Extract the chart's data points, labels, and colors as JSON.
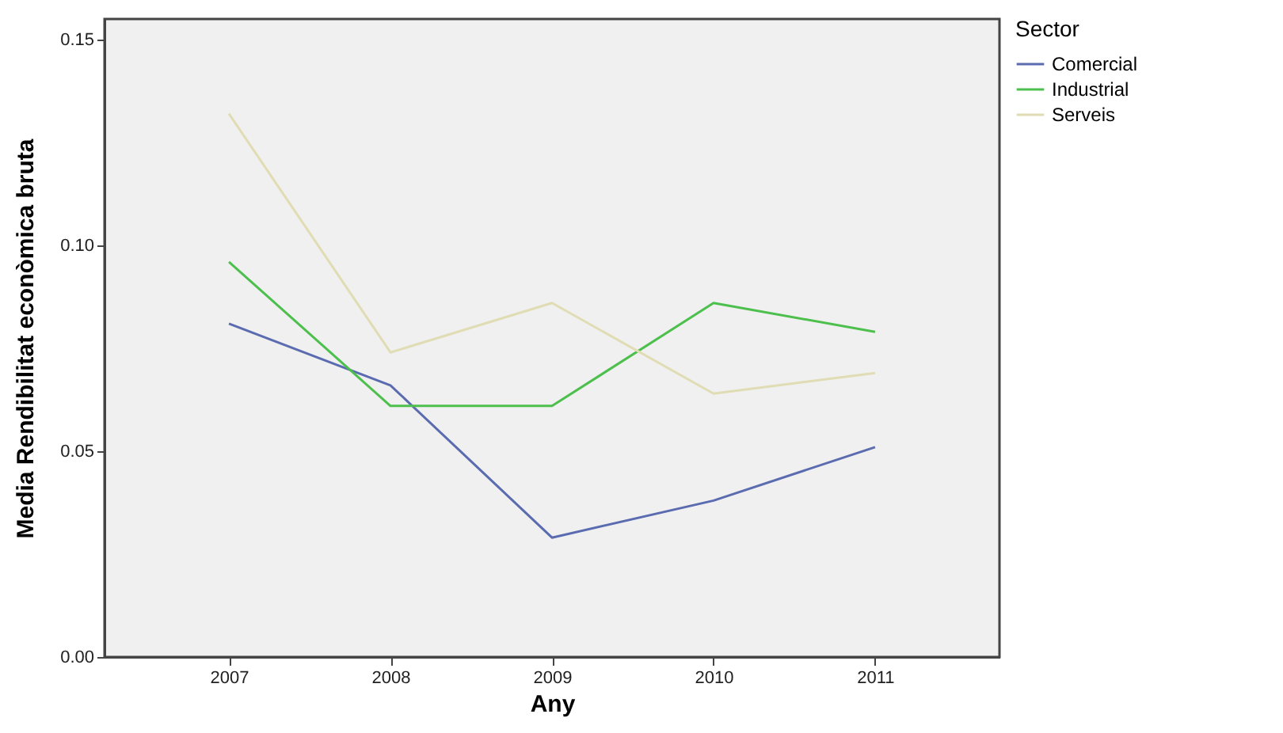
{
  "chart_data": {
    "type": "line",
    "xlabel": "Any",
    "ylabel": "Media Rendibilitat econòmica bruta",
    "legend_title": "Sector",
    "legend": "top right",
    "categories": [
      "2007",
      "2008",
      "2009",
      "2010",
      "2011"
    ],
    "series": [
      {
        "name": "Comercial",
        "color": "#5a6bb0",
        "values": [
          0.081,
          0.066,
          0.029,
          0.038,
          0.051
        ]
      },
      {
        "name": "Industrial",
        "color": "#4cbf4c",
        "values": [
          0.096,
          0.061,
          0.061,
          0.086,
          0.079
        ]
      },
      {
        "name": "Serveis",
        "color": "#e0dcb4",
        "values": [
          0.132,
          0.074,
          0.086,
          0.064,
          0.069
        ]
      }
    ],
    "ylim": [
      0,
      0.155
    ],
    "yticks": [
      {
        "value": 0,
        "label": "0.00"
      },
      {
        "value": 0.05,
        "label": "0.05"
      },
      {
        "value": 0.1,
        "label": "0.10"
      },
      {
        "value": 0.15,
        "label": "0.15"
      }
    ],
    "grid": false,
    "marker": "none",
    "line_style": "solid"
  }
}
